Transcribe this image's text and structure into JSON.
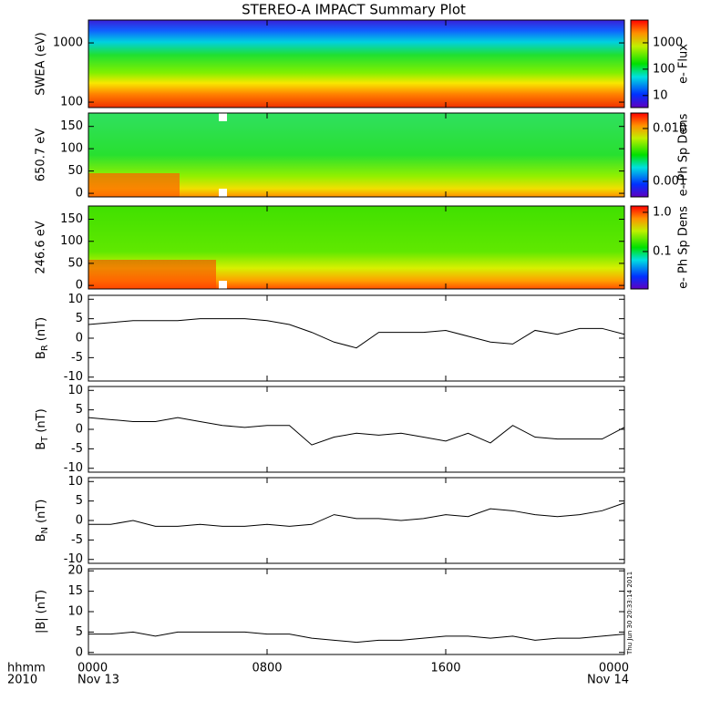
{
  "title": "STEREO-A IMPACT Summary Plot",
  "x_axis": {
    "xlim": [
      0,
      24
    ],
    "xticks": [
      {
        "value": 0,
        "label": "0000"
      },
      {
        "value": 8,
        "label": "0800"
      },
      {
        "value": 16,
        "label": "1600"
      },
      {
        "value": 24,
        "label": "0000"
      }
    ],
    "date_ticks": [
      {
        "value": 0,
        "label": "Nov 13"
      },
      {
        "value": 24,
        "label": "Nov 14"
      }
    ],
    "corner_labels": [
      "hhmm",
      "2010"
    ]
  },
  "timestamp": "Thu Jun 30 20:33:14 2011",
  "chart_data": [
    {
      "type": "spectrogram",
      "ylabel": "SWEA (eV)",
      "ylog": true,
      "ylim": [
        81,
        2430
      ],
      "yticks": [
        100,
        1000
      ],
      "colorbar": {
        "label": "e- Flux",
        "log": true,
        "clim": [
          3.5,
          7300
        ],
        "ticks": [
          10,
          100,
          1000
        ]
      }
    },
    {
      "type": "spectrogram",
      "ylabel": "650.7 eV",
      "ylim": [
        -8,
        180
      ],
      "yticks": [
        0,
        50,
        100,
        150
      ],
      "colorbar": {
        "label": "e- Ph Sp Dens",
        "log": true,
        "clim": [
          0.00051,
          0.0196
        ],
        "ticks": [
          {
            "value": 0.001,
            "label": "0.001"
          },
          {
            "value": 0.01,
            "label": "0.010"
          }
        ]
      }
    },
    {
      "type": "spectrogram",
      "ylabel": "246.6 eV",
      "ylim": [
        -8,
        180
      ],
      "yticks": [
        0,
        50,
        100,
        150
      ],
      "colorbar": {
        "label": "e- Ph Sp Dens",
        "log": true,
        "clim": [
          0.0111,
          1.45
        ],
        "ticks": [
          {
            "value": 0.1,
            "label": "0.1"
          },
          {
            "value": 1,
            "label": "1.0"
          }
        ]
      }
    },
    {
      "type": "line",
      "ylabel": {
        "main": "B",
        "sub": "R",
        "unit": "(nT)"
      },
      "ylim": [
        -11,
        11
      ],
      "yticks": [
        -10,
        -5,
        0,
        5,
        10
      ],
      "color": "#000000",
      "x": [
        0,
        1,
        2,
        3,
        4,
        5,
        6,
        7,
        8,
        9,
        10,
        11,
        12,
        13,
        14,
        15,
        16,
        17,
        18,
        19,
        20,
        21,
        22,
        23,
        24
      ],
      "values": [
        3.5,
        4,
        4.5,
        4.5,
        4.5,
        5,
        5,
        5,
        4.5,
        3.5,
        1.5,
        -1,
        -2.5,
        1.5,
        1.5,
        1.5,
        2,
        0.5,
        -1,
        -1.5,
        2,
        1,
        2.5,
        2.5,
        1
      ]
    },
    {
      "type": "line",
      "ylabel": {
        "main": "B",
        "sub": "T",
        "unit": "(nT)"
      },
      "ylim": [
        -11,
        11
      ],
      "yticks": [
        -10,
        -5,
        0,
        5,
        10
      ],
      "color": "#000000",
      "x": [
        0,
        1,
        2,
        3,
        4,
        5,
        6,
        7,
        8,
        9,
        10,
        11,
        12,
        13,
        14,
        15,
        16,
        17,
        18,
        19,
        20,
        21,
        22,
        23,
        24
      ],
      "values": [
        3,
        2.5,
        2,
        2,
        3,
        2,
        1,
        0.5,
        1,
        1,
        -4,
        -2,
        -1,
        -1.5,
        -1,
        -2,
        -3,
        -1,
        -3.5,
        1,
        -2,
        -2.5,
        -2.5,
        -2.5,
        0.5
      ]
    },
    {
      "type": "line",
      "ylabel": {
        "main": "B",
        "sub": "N",
        "unit": "(nT)"
      },
      "ylim": [
        -11,
        11
      ],
      "yticks": [
        -10,
        -5,
        0,
        5,
        10
      ],
      "color": "#000000",
      "x": [
        0,
        1,
        2,
        3,
        4,
        5,
        6,
        7,
        8,
        9,
        10,
        11,
        12,
        13,
        14,
        15,
        16,
        17,
        18,
        19,
        20,
        21,
        22,
        23,
        24
      ],
      "values": [
        -1,
        -1,
        0,
        -1.5,
        -1.5,
        -1,
        -1.5,
        -1.5,
        -1,
        -1.5,
        -1,
        1.5,
        0.5,
        0.5,
        0,
        0.5,
        1.5,
        1,
        3,
        2.5,
        1.5,
        1,
        1.5,
        2.5,
        4.5
      ]
    },
    {
      "type": "line",
      "ylabel": {
        "main": "|B|",
        "unit": "(nT)"
      },
      "ylim": [
        -0.5,
        20.5
      ],
      "yticks": [
        0,
        5,
        10,
        15,
        20
      ],
      "color": "#000000",
      "x": [
        0,
        1,
        2,
        3,
        4,
        5,
        6,
        7,
        8,
        9,
        10,
        11,
        12,
        13,
        14,
        15,
        16,
        17,
        18,
        19,
        20,
        21,
        22,
        23,
        24
      ],
      "values": [
        4.5,
        4.5,
        5,
        4,
        5,
        5,
        5,
        5,
        4.5,
        4.5,
        3.5,
        3,
        2.5,
        3,
        3,
        3.5,
        4,
        4,
        3.5,
        4,
        3,
        3.5,
        3.5,
        4,
        4.5
      ]
    }
  ]
}
